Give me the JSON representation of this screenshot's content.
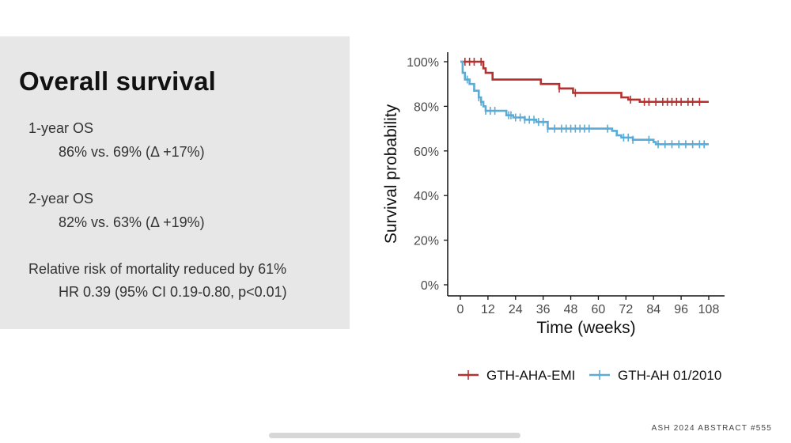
{
  "slide": {
    "title": "Overall survival",
    "stats": [
      {
        "label": "1-year OS",
        "value": "86% vs. 69% (Δ +17%)"
      },
      {
        "label": "2-year OS",
        "value": "82% vs. 63%  (Δ +19%)"
      },
      {
        "label": "Relative risk of mortality reduced by 61%",
        "value": "HR 0.39 (95% CI 0.19-0.80, p<0.01)"
      }
    ],
    "footer": "ASH 2024 ABSTRACT #555"
  },
  "chart_data": {
    "type": "line",
    "step": true,
    "title": "",
    "xlabel": "Time (weeks)",
    "ylabel": "Survival probability",
    "xlim": [
      0,
      108
    ],
    "ylim": [
      0,
      100
    ],
    "xticks": [
      0,
      12,
      24,
      36,
      48,
      60,
      72,
      84,
      96,
      108
    ],
    "yticks": [
      0,
      20,
      40,
      60,
      80,
      100
    ],
    "ytick_labels": [
      "0%",
      "20%",
      "40%",
      "60%",
      "80%",
      "100%"
    ],
    "legend_position": "bottom",
    "series": [
      {
        "name": "GTH-AHA-EMI",
        "color": "#b5312f",
        "x": [
          0,
          10,
          11,
          14,
          35,
          43,
          49,
          70,
          73,
          78,
          108
        ],
        "y": [
          100,
          97,
          95,
          92,
          90,
          88,
          86,
          84,
          83,
          82,
          82
        ],
        "censor_x": [
          2,
          4,
          6,
          9,
          43,
          50,
          74,
          80,
          82,
          85,
          88,
          90,
          92,
          94,
          96,
          99,
          101,
          104
        ]
      },
      {
        "name": "GTH-AH 01/2010",
        "color": "#5aabd6",
        "x": [
          0,
          1,
          2,
          4,
          6,
          8,
          9,
          10,
          11,
          20,
          23,
          28,
          33,
          38,
          66,
          68,
          70,
          75,
          84,
          85,
          108
        ],
        "y": [
          100,
          95,
          92,
          90,
          87,
          84,
          82,
          80,
          78,
          76,
          75,
          74,
          73,
          70,
          69,
          67,
          66,
          65,
          64,
          63,
          63
        ],
        "censor_x": [
          3,
          8,
          9,
          11,
          13,
          15,
          21,
          22,
          24,
          26,
          28,
          30,
          32,
          34,
          36,
          38,
          41,
          44,
          46,
          48,
          50,
          52,
          54,
          56,
          64,
          71,
          73,
          75,
          82,
          86,
          89,
          92,
          95,
          98,
          101,
          104,
          106
        ]
      }
    ]
  }
}
